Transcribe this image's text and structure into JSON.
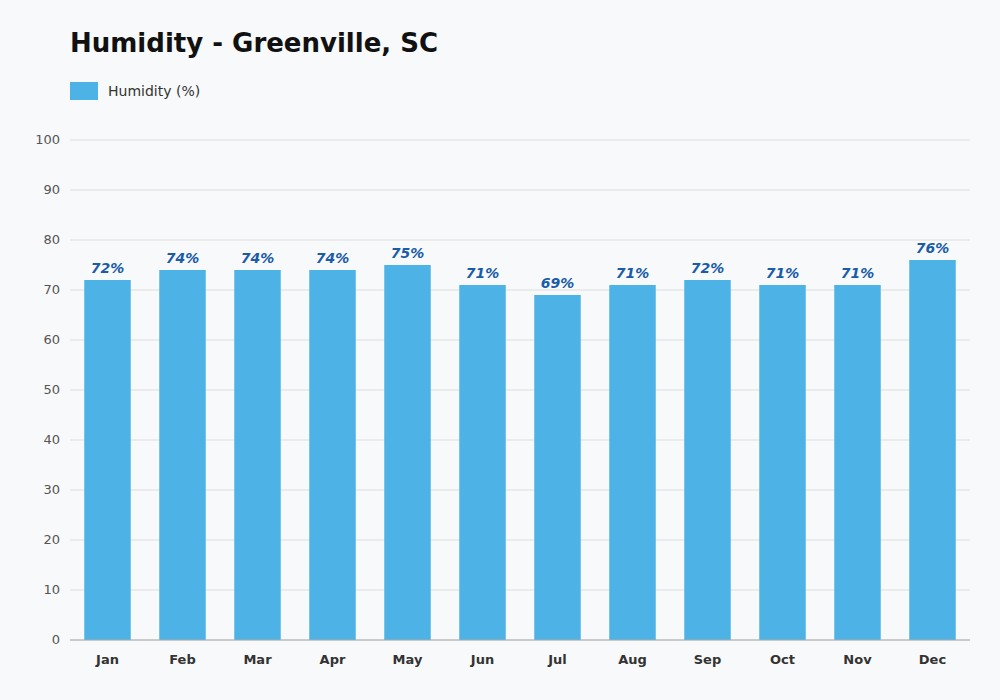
{
  "chart_data": {
    "type": "bar",
    "title": "Humidity - Greenville, SC",
    "categories": [
      "Jan",
      "Feb",
      "Mar",
      "Apr",
      "May",
      "Jun",
      "Jul",
      "Aug",
      "Sep",
      "Oct",
      "Nov",
      "Dec"
    ],
    "series": [
      {
        "name": "Humidity (%)",
        "color": "#4db3e6",
        "values": [
          72,
          74,
          74,
          74,
          75,
          71,
          69,
          71,
          72,
          71,
          71,
          76
        ],
        "value_labels": [
          "72%",
          "74%",
          "74%",
          "74%",
          "75%",
          "71%",
          "69%",
          "71%",
          "72%",
          "71%",
          "71%",
          "76%"
        ]
      }
    ],
    "ylim": [
      0,
      100
    ],
    "yticks": [
      0,
      10,
      20,
      30,
      40,
      50,
      60,
      70,
      80,
      90,
      100
    ],
    "grid": true,
    "legend": "top-left",
    "data_labels": true
  }
}
